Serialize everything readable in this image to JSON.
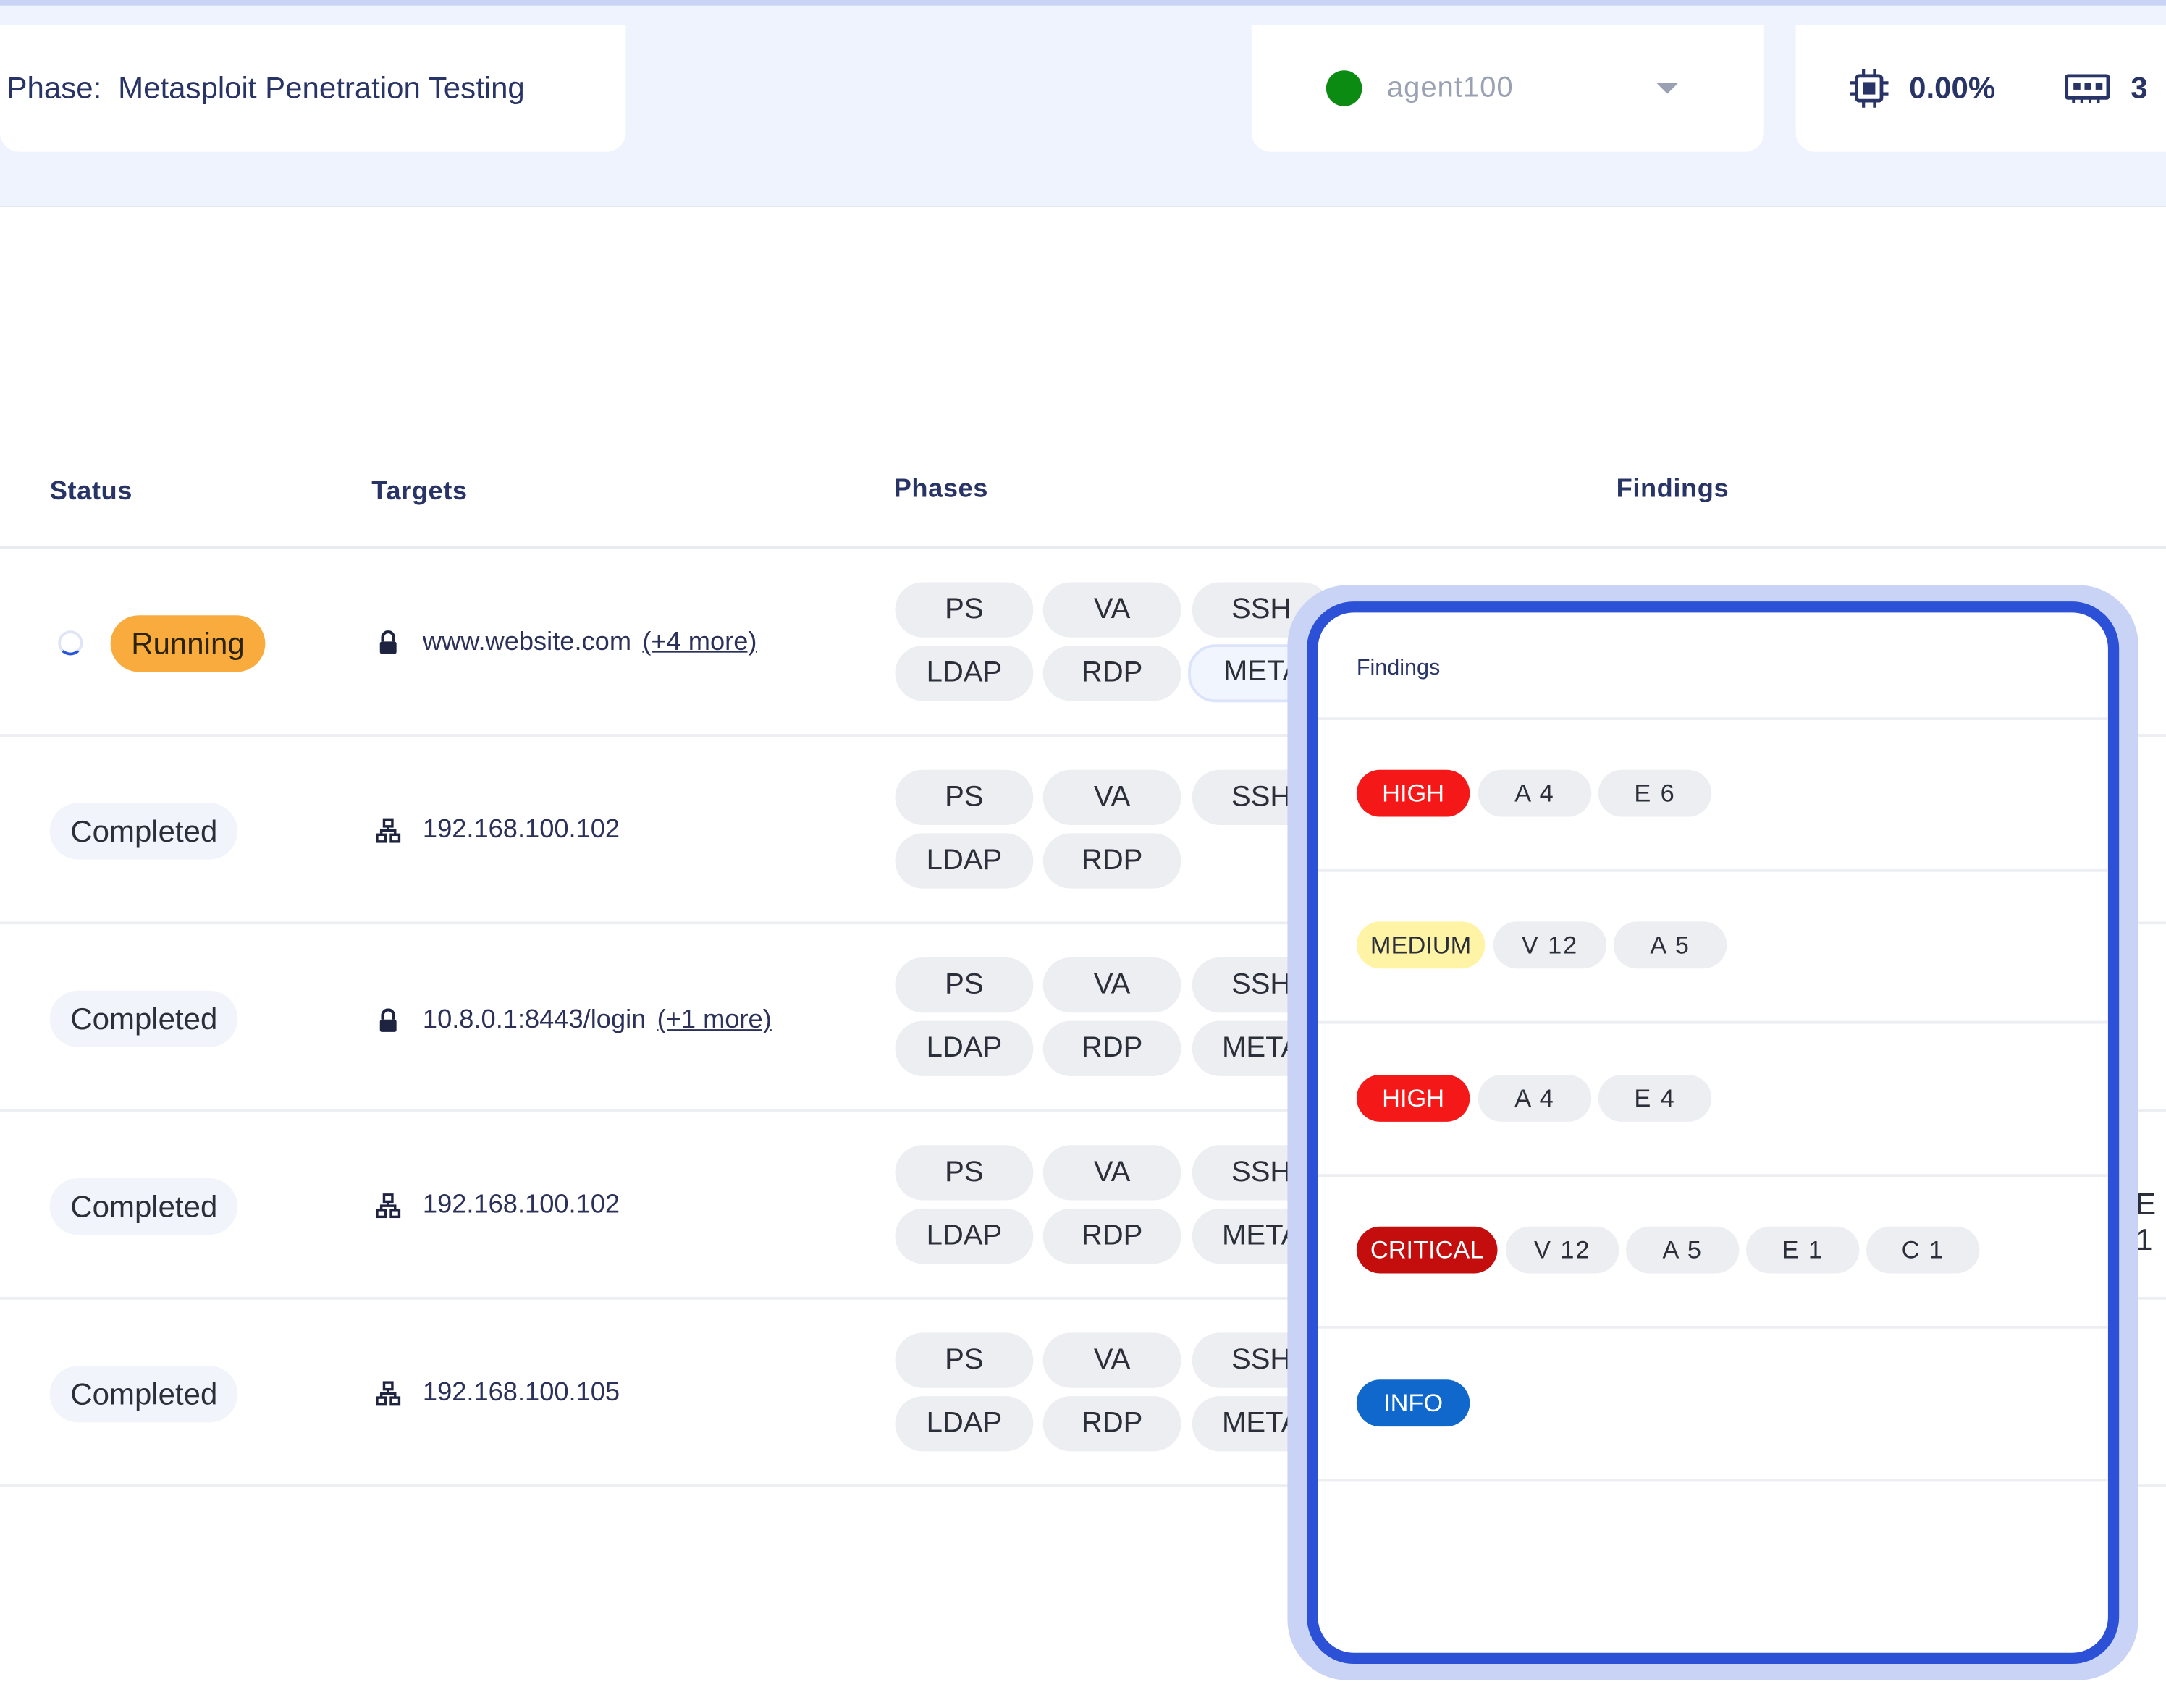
{
  "header": {
    "phase_label": "Phase:",
    "phase_value": "Metasploit Penetration Testing",
    "agent_name": "agent100",
    "cpu_usage": "0.00%",
    "memory_value": "3"
  },
  "table": {
    "columns": [
      "Status",
      "Targets",
      "Phases",
      "Findings"
    ],
    "rows": [
      {
        "status": "Running",
        "target": "www.website.com",
        "more": "(+4 more)",
        "target_icon": "lock-icon",
        "phases": [
          "PS",
          "VA",
          "SSH",
          "LDAP",
          "RDP",
          "META"
        ]
      },
      {
        "status": "Completed",
        "target": "192.168.100.102",
        "more": "",
        "target_icon": "network-icon",
        "phases": [
          "PS",
          "VA",
          "SSH",
          "LDAP",
          "RDP"
        ]
      },
      {
        "status": "Completed",
        "target": "10.8.0.1:8443/login",
        "more": "(+1 more)",
        "target_icon": "lock-icon",
        "phases": [
          "PS",
          "VA",
          "SSH",
          "LDAP",
          "RDP",
          "META"
        ]
      },
      {
        "status": "Completed",
        "target": "192.168.100.102",
        "more": "",
        "target_icon": "network-icon",
        "phases": [
          "PS",
          "VA",
          "SSH",
          "LDAP",
          "RDP",
          "META"
        ]
      },
      {
        "status": "Completed",
        "target": "192.168.100.105",
        "more": "",
        "target_icon": "network-icon",
        "phases": [
          "PS",
          "VA",
          "SSH",
          "LDAP",
          "RDP",
          "META"
        ]
      }
    ]
  },
  "findings_popover": {
    "title": "Findings",
    "rows": [
      {
        "severity": "HIGH",
        "chips": [
          "A 4",
          "E 6"
        ]
      },
      {
        "severity": "MEDIUM",
        "chips": [
          "V 12",
          "A 5"
        ]
      },
      {
        "severity": "HIGH",
        "chips": [
          "A 4",
          "E 4"
        ]
      },
      {
        "severity": "CRITICAL",
        "chips": [
          "V 12",
          "A 5",
          "E 1",
          "C 1"
        ]
      },
      {
        "severity": "INFO",
        "chips": []
      }
    ],
    "edge_text": "E 1"
  },
  "colors": {
    "running": "#f9ac3d",
    "high": "#f51818",
    "medium": "#fff3a6",
    "critical": "#c40e0e",
    "info": "#1068cc",
    "popover_border": "#2c51d6",
    "agent_online": "#0b8b12"
  }
}
